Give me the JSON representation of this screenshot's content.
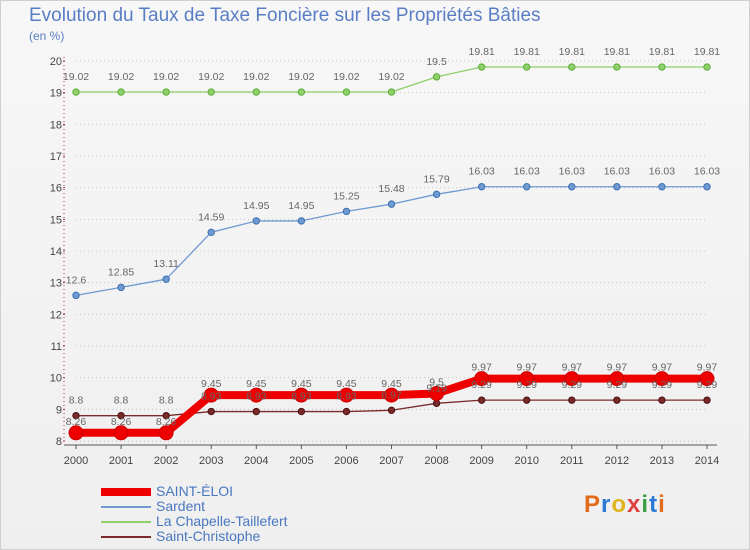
{
  "header": {
    "title": "Evolution du Taux de Taxe Foncière sur les Propriétés Bâties",
    "unit": "(en %)"
  },
  "logo": {
    "text": "Proxiti",
    "colors": [
      "#e36b1c",
      "#2a7ad6",
      "#e0b41c",
      "#e04040",
      "#3aa043",
      "#2a7ad6",
      "#e36b1c"
    ]
  },
  "chart_data": {
    "type": "line",
    "title": "Evolution du Taux de Taxe Foncière sur les Propriétés Bâties",
    "ylabel": "(en %)",
    "xlabel": "",
    "ylim": [
      8,
      20
    ],
    "yticks": [
      8,
      9,
      10,
      11,
      12,
      13,
      14,
      15,
      16,
      17,
      18,
      19,
      20
    ],
    "x": [
      2000,
      2001,
      2002,
      2003,
      2004,
      2005,
      2006,
      2007,
      2008,
      2009,
      2010,
      2011,
      2012,
      2013,
      2014
    ],
    "grid": "horizontal dotted",
    "legend_position": "bottom-left",
    "series": [
      {
        "name": "SAINT-ÉLOI",
        "color": "#ee0000",
        "values": [
          8.26,
          8.26,
          8.26,
          9.45,
          9.45,
          9.45,
          9.45,
          9.45,
          9.5,
          9.97,
          9.97,
          9.97,
          9.97,
          9.97,
          9.97
        ],
        "labels": [
          "8.26",
          "8.26",
          "8.26",
          "9.45",
          "9.45",
          "9.45",
          "9.45",
          "9.45",
          "9.5",
          "9.97",
          "9.97",
          "9.97",
          "9.97",
          "9.97",
          "9.97"
        ]
      },
      {
        "name": "Sardent",
        "color": "#6f9ad2",
        "values": [
          12.6,
          12.85,
          13.11,
          14.59,
          14.95,
          14.95,
          15.25,
          15.48,
          15.79,
          16.03,
          16.03,
          16.03,
          16.03,
          16.03,
          16.03
        ],
        "labels": [
          "12.6",
          "12.85",
          "13.11",
          "14.59",
          "14.95",
          "14.95",
          "15.25",
          "15.48",
          "15.79",
          "16.03",
          "16.03",
          "16.03",
          "16.03",
          "16.03",
          "16.03"
        ]
      },
      {
        "name": "La Chapelle-Taillefert",
        "color": "#8fd06a",
        "values": [
          19.02,
          19.02,
          19.02,
          19.02,
          19.02,
          19.02,
          19.02,
          19.02,
          19.5,
          19.81,
          19.81,
          19.81,
          19.81,
          19.81,
          19.81
        ],
        "labels": [
          "19.02",
          "19.02",
          "19.02",
          "19.02",
          "19.02",
          "19.02",
          "19.02",
          "19.02",
          "19.5",
          "19.81",
          "19.81",
          "19.81",
          "19.81",
          "19.81",
          "19.81"
        ]
      },
      {
        "name": "Saint-Christophe",
        "color": "#7a2a2a",
        "values": [
          8.8,
          8.8,
          8.8,
          8.93,
          8.93,
          8.93,
          8.93,
          8.97,
          9.19,
          9.29,
          9.29,
          9.29,
          9.29,
          9.29,
          9.29
        ],
        "labels": [
          "8.8",
          "8.8",
          "8.8",
          "8.93",
          "8.93",
          "8.93",
          "8.93",
          "8.97",
          "9.19",
          "9.29",
          "9.29",
          "9.29",
          "9.29",
          "9.29",
          "9.29"
        ]
      }
    ]
  }
}
